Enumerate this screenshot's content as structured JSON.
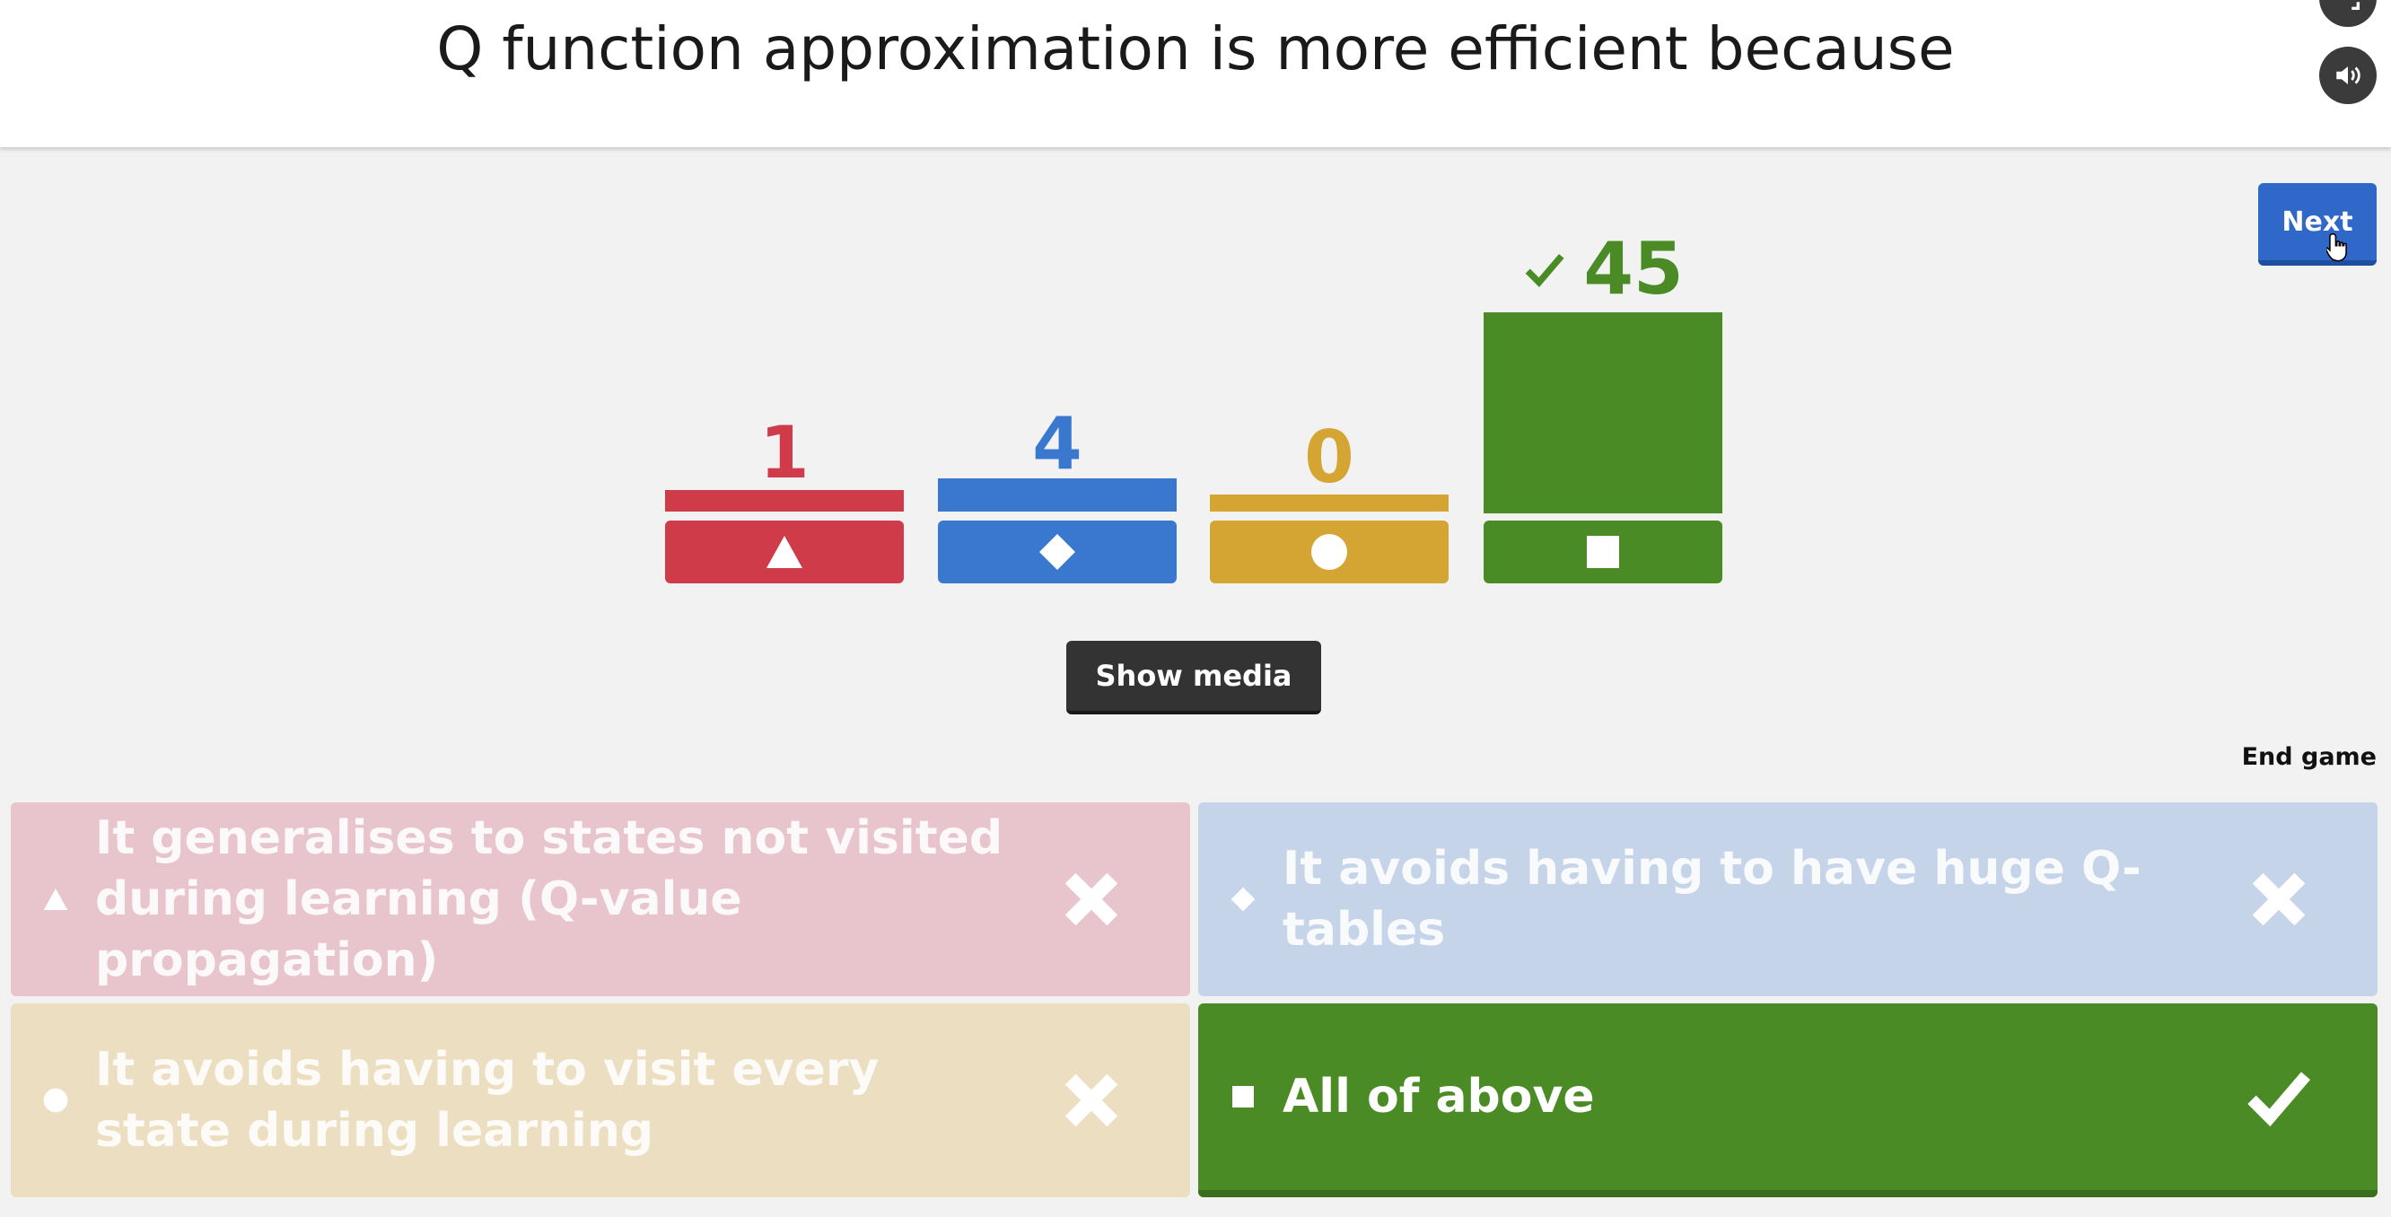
{
  "question": {
    "title": "Q function approximation is more efficient because"
  },
  "controls": {
    "next_label": "Next",
    "show_media_label": "Show media",
    "end_game_label": "End game"
  },
  "results": [
    {
      "shape": "triangle-icon",
      "count": "1",
      "color": "#d03b4a",
      "correct": false
    },
    {
      "shape": "diamond-icon",
      "count": "4",
      "color": "#3a78cf",
      "correct": false
    },
    {
      "shape": "circle-icon",
      "count": "0",
      "color": "#d4a533",
      "correct": false
    },
    {
      "shape": "square-icon",
      "count": "45",
      "color": "#4b8b26",
      "correct": true,
      "correct_icon": "checkmark-icon"
    }
  ],
  "answers": [
    {
      "shape": "triangle-icon",
      "text": "It generalises to states not visited during learning (Q-value propagation)",
      "mark_icon": "cross-icon",
      "correct": false
    },
    {
      "shape": "diamond-icon",
      "text": "It avoids having to have huge Q-tables",
      "mark_icon": "cross-icon",
      "correct": false
    },
    {
      "shape": "circle-icon",
      "text": "It avoids having to visit every state during learning",
      "mark_icon": "cross-icon",
      "correct": false
    },
    {
      "shape": "square-icon",
      "text": "All of above",
      "mark_icon": "checkmark-icon",
      "correct": true
    }
  ]
}
